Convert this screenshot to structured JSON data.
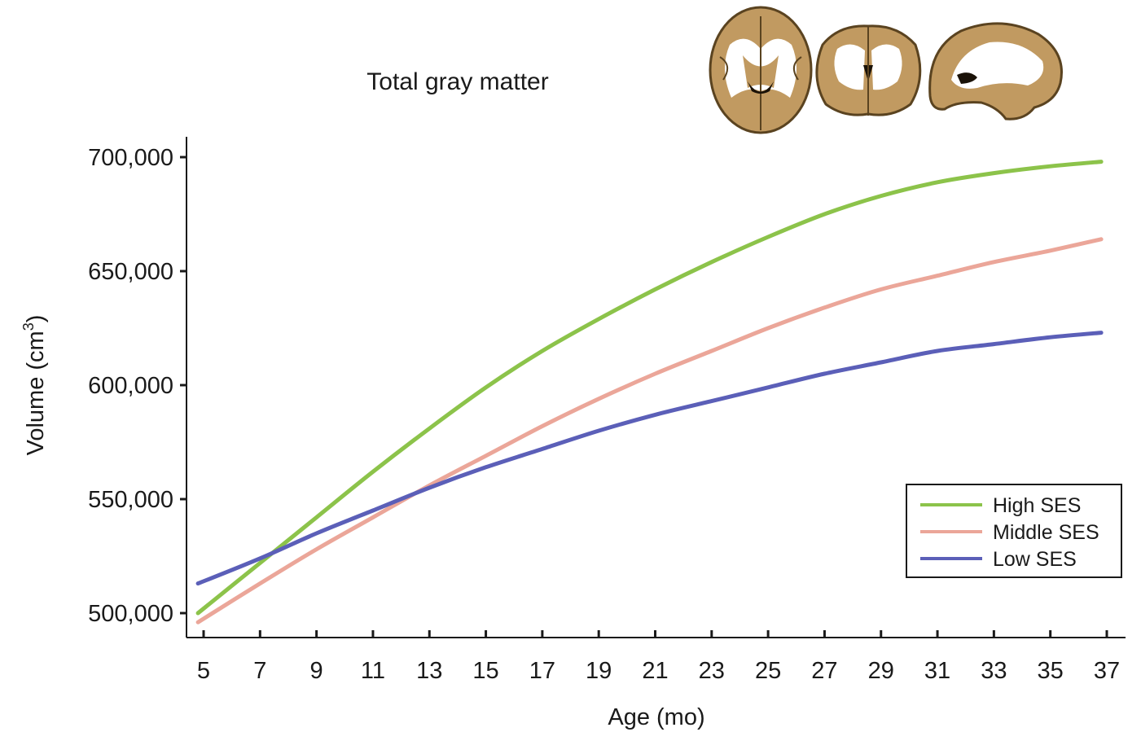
{
  "chart_data": {
    "type": "line",
    "title": "Total gray matter",
    "xlabel": "Age (mo)",
    "ylabel": "Volume (cm",
    "ylabel_superscript": "3",
    "ylabel_suffix": ")",
    "xlim": [
      4.6,
      37.8
    ],
    "ylim": [
      490000,
      710000
    ],
    "x_ticks": [
      5,
      7,
      9,
      11,
      13,
      15,
      17,
      19,
      21,
      23,
      25,
      27,
      29,
      31,
      33,
      35,
      37
    ],
    "y_ticks": [
      500000,
      550000,
      600000,
      650000,
      700000
    ],
    "y_tick_labels": [
      "500,000",
      "550,000",
      "600,000",
      "650,000",
      "700,000"
    ],
    "grid": false,
    "legend_position": "bottom-right",
    "series": [
      {
        "name": "High SES",
        "color": "#8cc34a",
        "x": [
          4.8,
          7,
          9,
          11,
          13,
          15,
          17,
          19,
          21,
          23,
          25,
          27,
          29,
          31,
          33,
          35,
          36.8
        ],
        "y": [
          500000,
          522000,
          542000,
          562000,
          581000,
          599000,
          615000,
          629000,
          642000,
          654000,
          665000,
          675000,
          683000,
          689000,
          693000,
          696000,
          698000
        ]
      },
      {
        "name": "Middle SES",
        "color": "#eba699",
        "x": [
          4.8,
          7,
          9,
          11,
          13,
          15,
          17,
          19,
          21,
          23,
          25,
          27,
          29,
          31,
          33,
          35,
          36.8
        ],
        "y": [
          496000,
          513000,
          528000,
          542000,
          556000,
          569000,
          582000,
          594000,
          605000,
          615000,
          625000,
          634000,
          642000,
          648000,
          654000,
          659000,
          664000
        ]
      },
      {
        "name": "Low SES",
        "color": "#5b5fb8",
        "x": [
          4.8,
          7,
          9,
          11,
          13,
          15,
          17,
          19,
          21,
          23,
          25,
          27,
          29,
          31,
          33,
          35,
          36.8
        ],
        "y": [
          513000,
          524000,
          535000,
          545000,
          555000,
          564000,
          572000,
          580000,
          587000,
          593000,
          599000,
          605000,
          610000,
          615000,
          618000,
          621000,
          623000
        ]
      }
    ]
  },
  "brain_images": {
    "icon": "brain-mri-slices-icon",
    "tissue_color": "#c19a61",
    "white_matter_color": "#ffffff",
    "outline_color": "#5a4320",
    "views": [
      "axial",
      "coronal",
      "sagittal"
    ]
  }
}
